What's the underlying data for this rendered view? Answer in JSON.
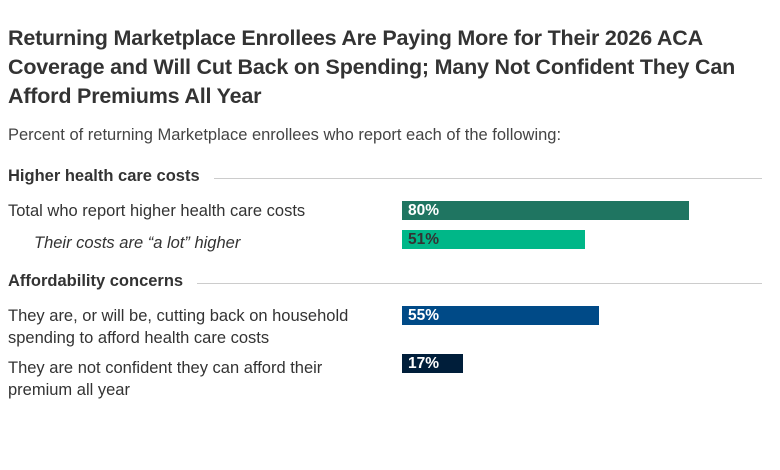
{
  "title": "Returning Marketplace Enrollees Are Paying More for Their 2026 ACA Coverage and Will Cut Back on Spending; Many Not Confident They Can Afford Premiums All Year",
  "subtitle": "Percent of returning Marketplace enrollees who report each of the following:",
  "chart_data": {
    "type": "bar",
    "orientation": "horizontal",
    "title": "Returning Marketplace Enrollees Are Paying More for Their 2026 ACA Coverage and Will Cut Back on Spending; Many Not Confident They Can Afford Premiums All Year",
    "subtitle": "Percent of returning Marketplace enrollees who report each of the following:",
    "xlim": [
      0,
      100
    ],
    "grid": false,
    "groups": [
      {
        "name": "Higher health care costs",
        "items": [
          {
            "label": "Total who report higher health care costs",
            "value": 80,
            "display": "80%",
            "color": "#1f7561",
            "text_color": "#ffffff",
            "italic": false
          },
          {
            "label": "Their costs are “a lot” higher",
            "value": 51,
            "display": "51%",
            "color": "#00b788",
            "text_color": "#333333",
            "italic": true
          }
        ]
      },
      {
        "name": "Affordability concerns",
        "items": [
          {
            "label": "They are, or will be, cutting back on household spending to afford health care costs",
            "value": 55,
            "display": "55%",
            "color": "#004a87",
            "text_color": "#ffffff",
            "italic": false
          },
          {
            "label": "They are not confident they can afford their premium all year",
            "value": 17,
            "display": "17%",
            "color": "#001e3a",
            "text_color": "#ffffff",
            "italic": false
          }
        ]
      }
    ]
  }
}
